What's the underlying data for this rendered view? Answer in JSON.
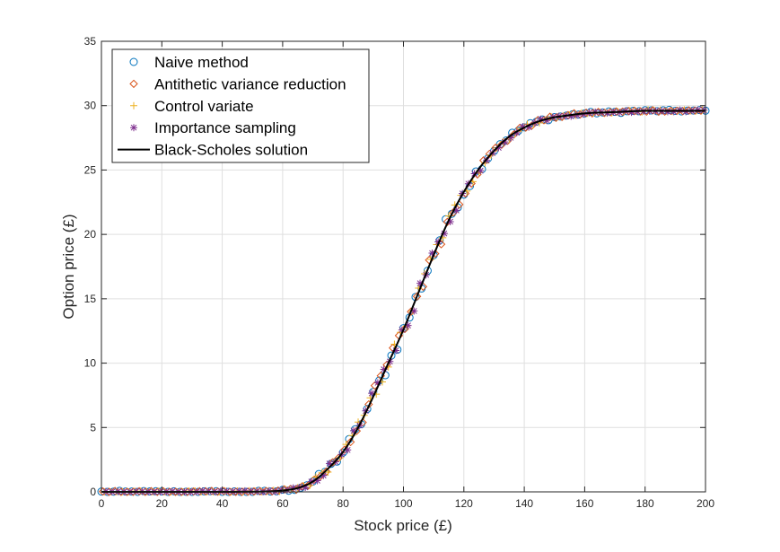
{
  "chart_data": {
    "type": "scatter",
    "xlabel": "Stock price (£)",
    "ylabel": "Option price (£)",
    "xlim": [
      0,
      200
    ],
    "ylim": [
      0,
      35
    ],
    "xticks": [
      0,
      20,
      40,
      60,
      80,
      100,
      120,
      140,
      160,
      180,
      200
    ],
    "yticks": [
      0,
      5,
      10,
      15,
      20,
      25,
      30,
      35
    ],
    "grid": true,
    "legend_position": "top-left",
    "x": [
      0,
      10,
      20,
      30,
      40,
      50,
      55,
      60,
      65,
      70,
      75,
      80,
      85,
      90,
      95,
      100,
      105,
      110,
      115,
      120,
      125,
      130,
      135,
      140,
      145,
      150,
      160,
      170,
      180,
      190,
      200
    ],
    "series": [
      {
        "name": "Naive method",
        "marker": "circle",
        "color": "#0072BD",
        "values": [
          0,
          0,
          0,
          0,
          0,
          0.01,
          0.03,
          0.1,
          0.3,
          0.8,
          1.8,
          3.1,
          5.0,
          7.4,
          10.0,
          12.5,
          15.5,
          18.5,
          21.2,
          23.3,
          25.1,
          26.6,
          27.6,
          28.3,
          28.8,
          29.1,
          29.4,
          29.5,
          29.6,
          29.6,
          29.6
        ]
      },
      {
        "name": "Antithetic variance reduction",
        "marker": "diamond",
        "color": "#D95319",
        "values": [
          0,
          0,
          0,
          0,
          0,
          0.01,
          0.03,
          0.1,
          0.3,
          0.8,
          1.8,
          3.2,
          5.1,
          7.5,
          10.1,
          12.6,
          15.5,
          18.4,
          21.1,
          23.3,
          25.1,
          26.5,
          27.5,
          28.3,
          28.8,
          29.1,
          29.4,
          29.5,
          29.6,
          29.6,
          29.6
        ]
      },
      {
        "name": "Control variate",
        "marker": "plus",
        "color": "#EDB120",
        "values": [
          0,
          0,
          0,
          0,
          0,
          0.01,
          0.03,
          0.1,
          0.3,
          0.8,
          1.8,
          3.1,
          5.0,
          7.4,
          10.0,
          12.6,
          15.4,
          18.4,
          21.1,
          23.2,
          25.1,
          26.5,
          27.6,
          28.3,
          28.8,
          29.1,
          29.4,
          29.5,
          29.6,
          29.6,
          29.6
        ]
      },
      {
        "name": "Importance sampling",
        "marker": "asterisk",
        "color": "#7E2F8E",
        "values": [
          0,
          0,
          0,
          0,
          0,
          0.01,
          0.03,
          0.1,
          0.3,
          0.8,
          1.8,
          3.1,
          5.0,
          7.4,
          10.0,
          12.6,
          15.5,
          18.4,
          21.1,
          23.3,
          25.1,
          26.6,
          27.6,
          28.3,
          28.8,
          29.1,
          29.4,
          29.5,
          29.6,
          29.6,
          29.6
        ]
      },
      {
        "name": "Black-Scholes solution",
        "marker": "line",
        "color": "#000000",
        "values": [
          0,
          0,
          0,
          0,
          0,
          0.01,
          0.03,
          0.1,
          0.3,
          0.8,
          1.8,
          3.1,
          5.0,
          7.4,
          10.0,
          12.6,
          15.5,
          18.4,
          21.1,
          23.3,
          25.1,
          26.5,
          27.6,
          28.3,
          28.8,
          29.1,
          29.4,
          29.5,
          29.6,
          29.6,
          29.6
        ]
      }
    ]
  }
}
